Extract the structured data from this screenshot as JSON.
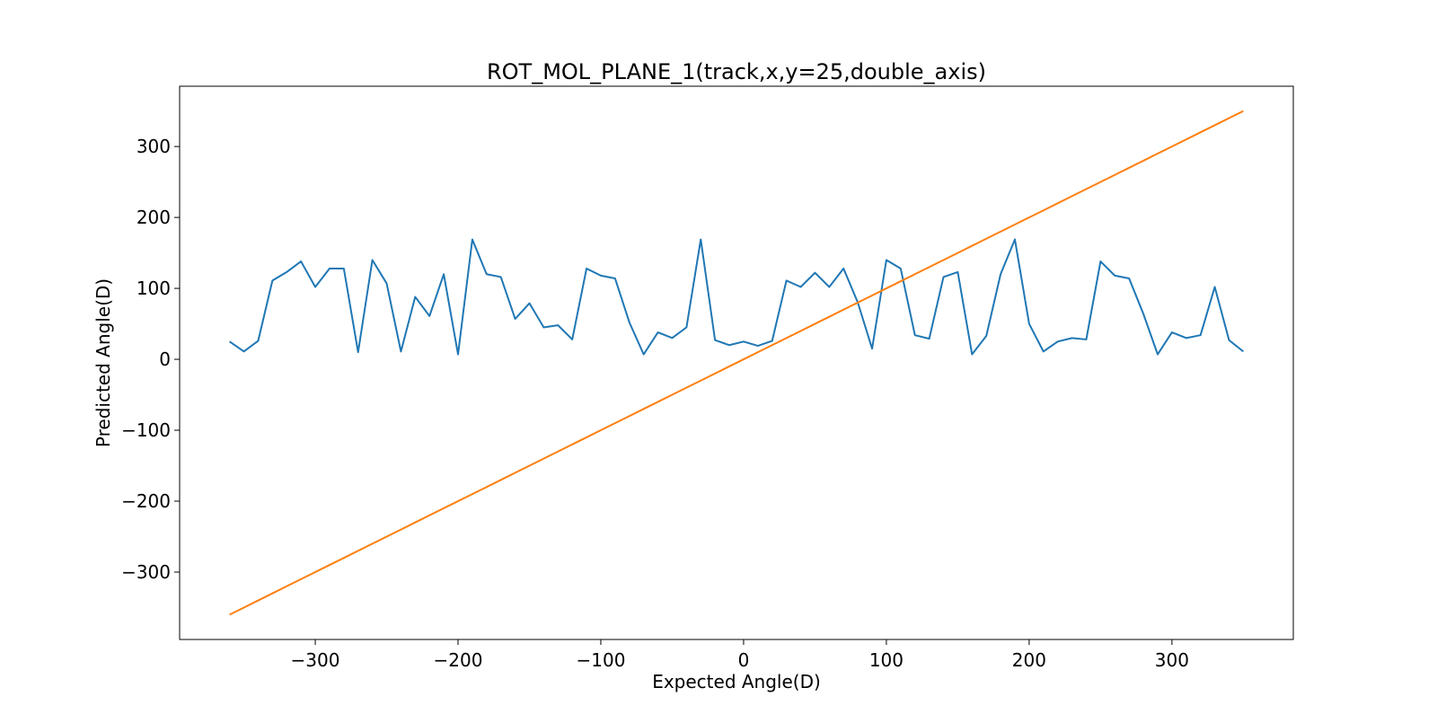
{
  "chart_data": {
    "type": "line",
    "title": "ROT_MOL_PLANE_1(track,x,y=25,double_axis)",
    "xlabel": "Expected Angle(D)",
    "ylabel": "Predicted Angle(D)",
    "xlim": [
      -395,
      385
    ],
    "ylim": [
      -395,
      385
    ],
    "xticks": [
      -300,
      -200,
      -100,
      0,
      100,
      200,
      300
    ],
    "yticks": [
      -300,
      -200,
      -100,
      0,
      100,
      200,
      300
    ],
    "grid": false,
    "legend": "none",
    "x": [
      -360,
      -350,
      -340,
      -330,
      -320,
      -310,
      -300,
      -290,
      -280,
      -270,
      -260,
      -250,
      -240,
      -230,
      -220,
      -210,
      -200,
      -190,
      -180,
      -170,
      -160,
      -150,
      -140,
      -130,
      -120,
      -110,
      -100,
      -90,
      -80,
      -70,
      -60,
      -50,
      -40,
      -30,
      -20,
      -10,
      0,
      10,
      20,
      30,
      40,
      50,
      60,
      70,
      80,
      90,
      100,
      110,
      120,
      130,
      140,
      150,
      160,
      170,
      180,
      190,
      200,
      210,
      220,
      230,
      240,
      250,
      260,
      270,
      280,
      290,
      300,
      310,
      320,
      330,
      340,
      350
    ],
    "series": [
      {
        "color": "#1f77b4",
        "values": [
          25,
          11,
          26,
          111,
          123,
          138,
          102,
          128,
          128,
          10,
          140,
          107,
          11,
          88,
          61,
          120,
          7,
          169,
          120,
          116,
          57,
          79,
          45,
          48,
          28,
          128,
          118,
          114,
          52,
          7,
          38,
          30,
          45,
          169,
          27,
          20,
          25,
          19,
          26,
          111,
          102,
          122,
          102,
          128,
          80,
          15,
          140,
          128,
          34,
          29,
          116,
          123,
          7,
          33,
          120,
          169,
          50,
          11,
          25,
          30,
          28,
          138,
          118,
          114,
          64,
          7,
          38,
          30,
          34,
          102,
          27,
          11
        ]
      },
      {
        "color": "#ff7f0e",
        "values": [
          -360,
          -350,
          -340,
          -330,
          -320,
          -310,
          -300,
          -290,
          -280,
          -270,
          -260,
          -250,
          -240,
          -230,
          -220,
          -210,
          -200,
          -190,
          -180,
          -170,
          -160,
          -150,
          -140,
          -130,
          -120,
          -110,
          -100,
          -90,
          -80,
          -70,
          -60,
          -50,
          -40,
          -30,
          -20,
          -10,
          0,
          10,
          20,
          30,
          40,
          50,
          60,
          70,
          80,
          90,
          100,
          110,
          120,
          130,
          140,
          150,
          160,
          170,
          180,
          190,
          200,
          210,
          220,
          230,
          240,
          250,
          260,
          270,
          280,
          290,
          300,
          310,
          320,
          330,
          340,
          350
        ]
      }
    ]
  }
}
